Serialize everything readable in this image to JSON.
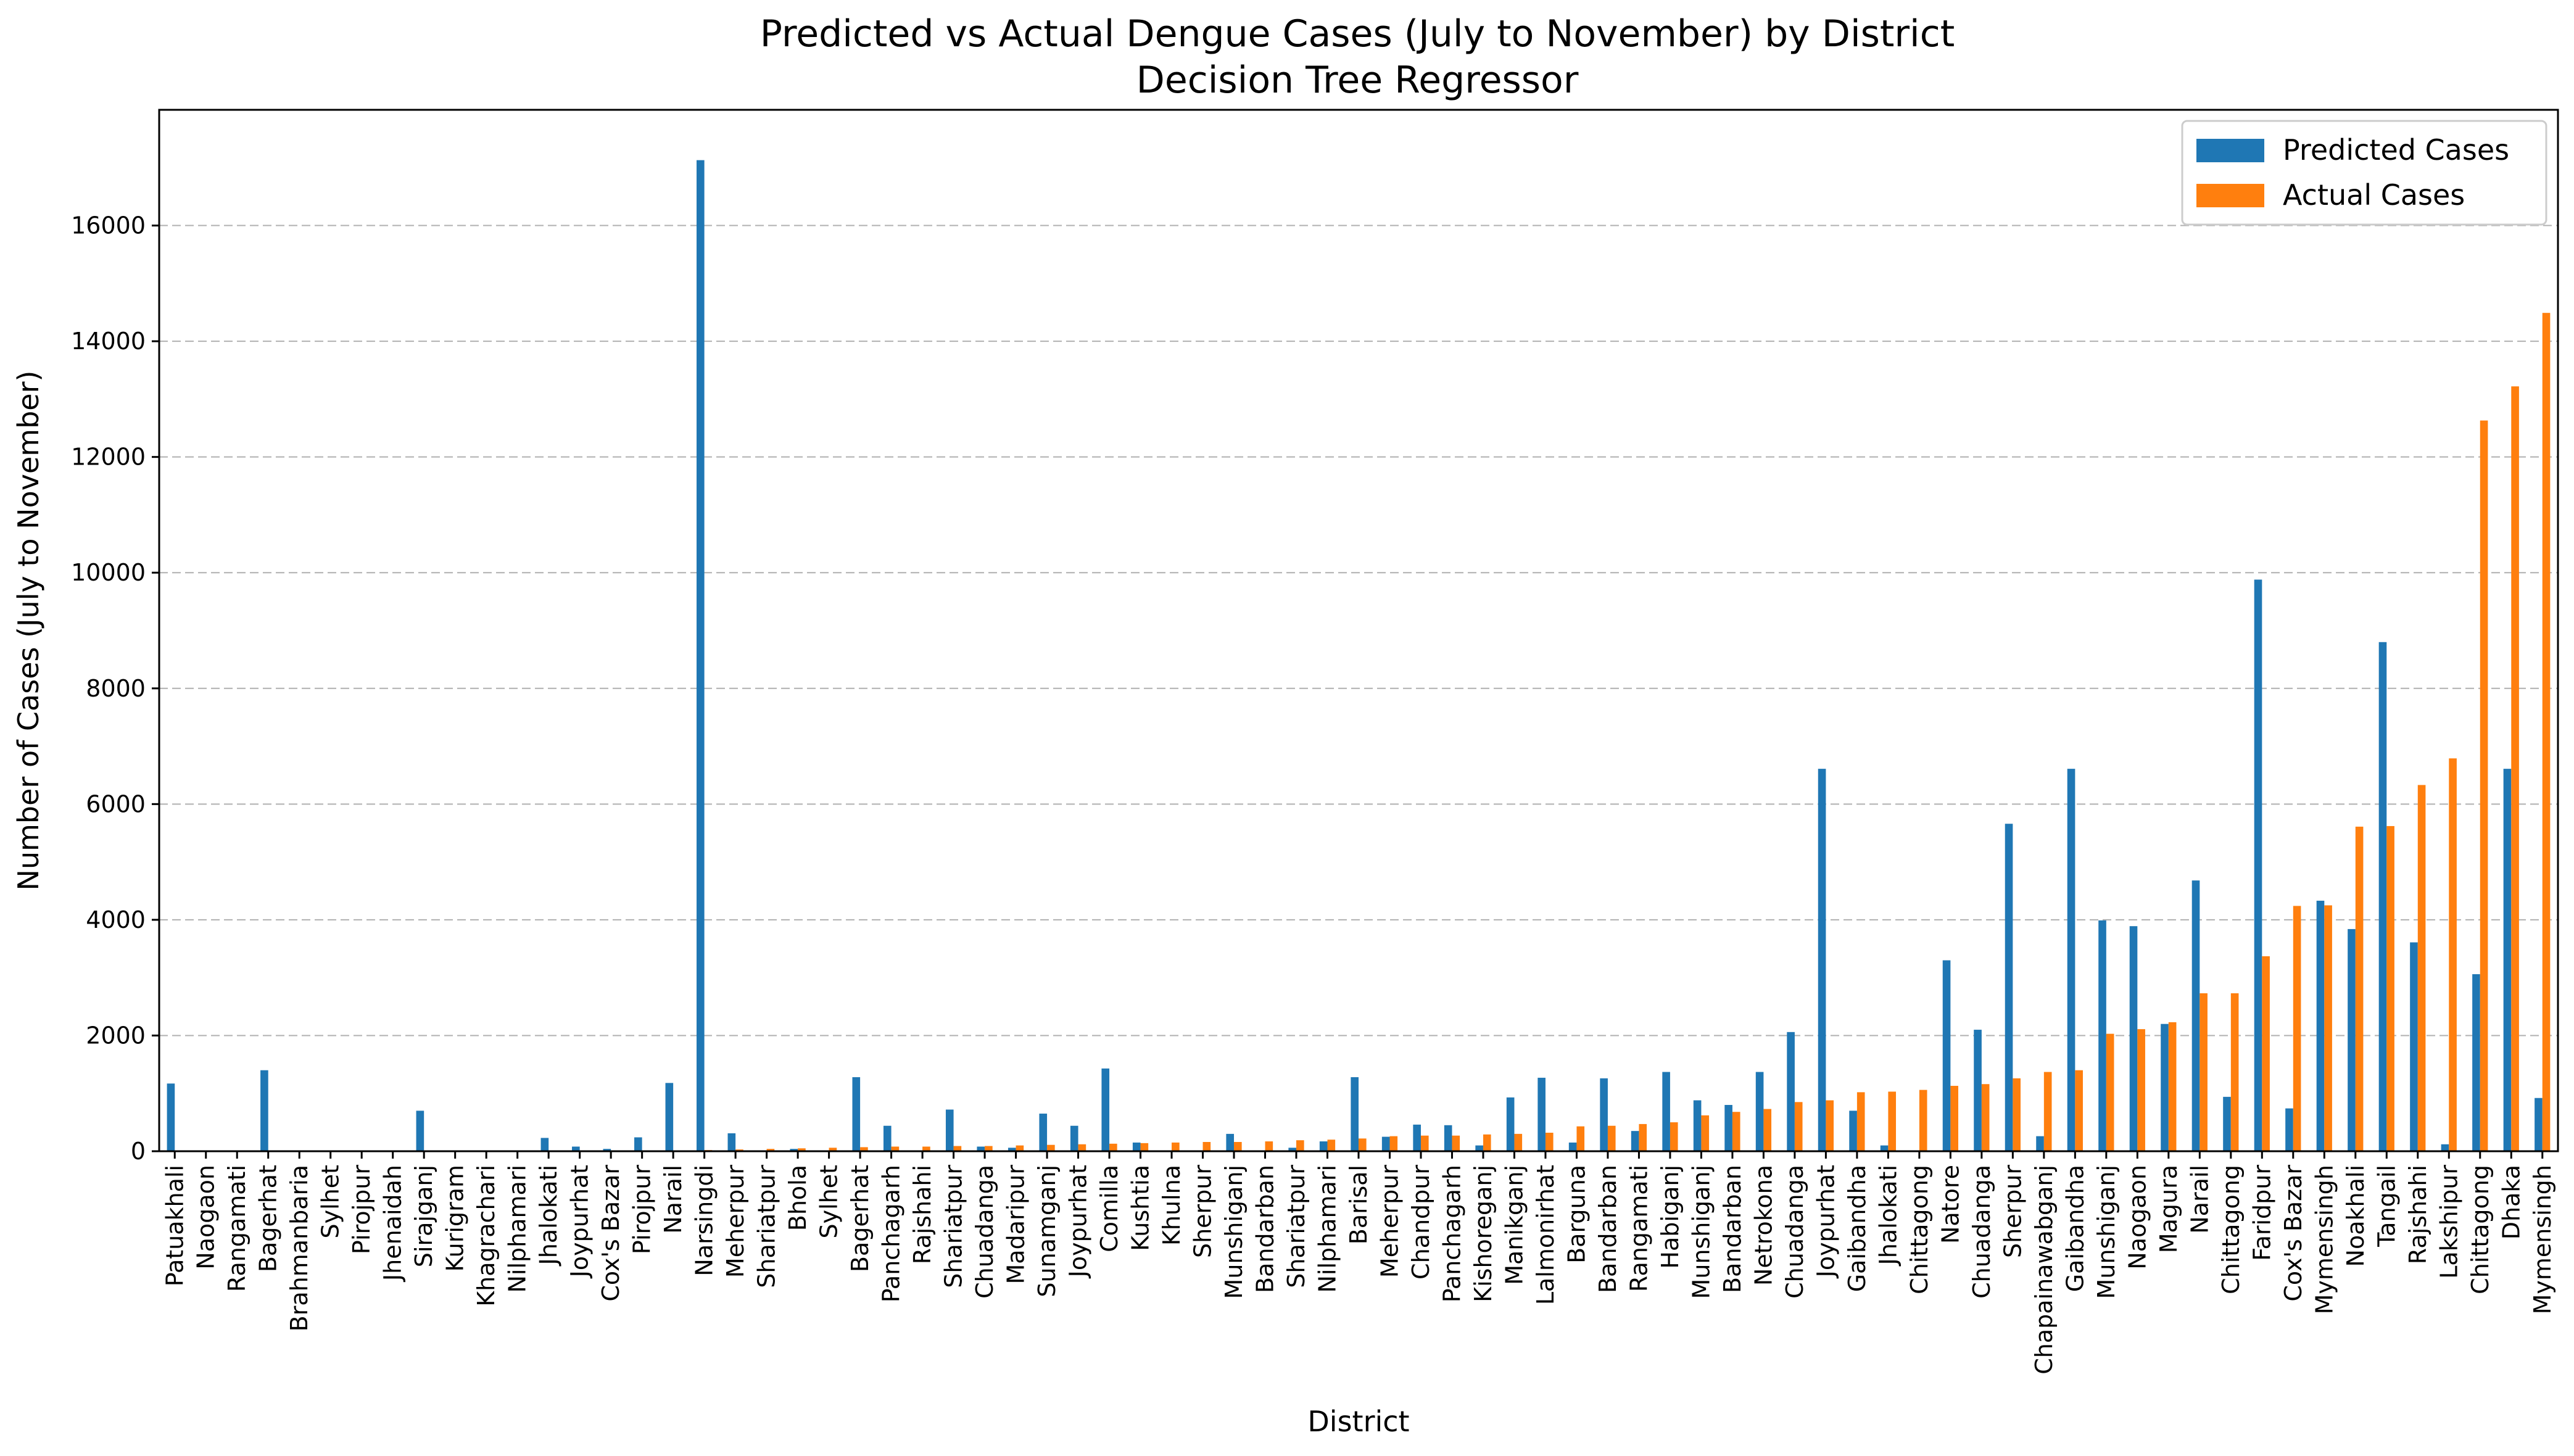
{
  "chart_data": {
    "type": "bar",
    "title": "Predicted vs Actual Dengue Cases (July to November) by District",
    "subtitle": "Decision Tree Regressor",
    "xlabel": "District",
    "ylabel": "Number of Cases (July to November)",
    "ylim": [
      0,
      18000
    ],
    "yticks": [
      0,
      2000,
      4000,
      6000,
      8000,
      10000,
      12000,
      14000,
      16000
    ],
    "grid": "y-dashed",
    "legend_position": "top-right",
    "categories": [
      "Patuakhali",
      "Naogaon",
      "Rangamati",
      "Bagerhat",
      "Brahmanbaria",
      "Sylhet",
      "Pirojpur",
      "Jhenaidah",
      "Sirajganj",
      "Kurigram",
      "Khagrachari",
      "Nilphamari",
      "Jhalokati",
      "Joypurhat",
      "Cox's Bazar",
      "Pirojpur",
      "Narail",
      "Narsingdi",
      "Meherpur",
      "Shariatpur",
      "Bhola",
      "Sylhet",
      "Bagerhat",
      "Panchagarh",
      "Rajshahi",
      "Shariatpur",
      "Chuadanga",
      "Madaripur",
      "Sunamganj",
      "Joypurhat",
      "Comilla",
      "Kushtia",
      "Khulna",
      "Sherpur",
      "Munshiganj",
      "Bandarban",
      "Shariatpur",
      "Nilphamari",
      "Barisal",
      "Meherpur",
      "Chandpur",
      "Panchagarh",
      "Kishoreganj",
      "Manikganj",
      "Lalmonirhat",
      "Barguna",
      "Bandarban",
      "Rangamati",
      "Habiganj",
      "Munshiganj",
      "Bandarban",
      "Netrokona",
      "Chuadanga",
      "Joypurhat",
      "Gaibandha",
      "Jhalokati",
      "Chittagong",
      "Natore",
      "Chuadanga",
      "Sherpur",
      "Chapainawabganj",
      "Gaibandha",
      "Munshiganj",
      "Naogaon",
      "Magura",
      "Narail",
      "Chittagong",
      "Faridpur",
      "Cox's Bazar",
      "Mymensingh",
      "Noakhali",
      "Tangail",
      "Rajshahi",
      "Lakshipur",
      "Chittagong",
      "Dhaka",
      "Mymensingh"
    ],
    "series": [
      {
        "name": "Predicted Cases",
        "color": "#1f77b4",
        "values": [
          1170,
          0,
          0,
          1400,
          0,
          0,
          0,
          0,
          700,
          0,
          0,
          0,
          230,
          80,
          40,
          240,
          1180,
          17130,
          310,
          0,
          40,
          0,
          1280,
          440,
          0,
          720,
          80,
          60,
          650,
          440,
          1430,
          150,
          0,
          0,
          300,
          0,
          60,
          170,
          1280,
          250,
          460,
          450,
          100,
          930,
          1270,
          150,
          1260,
          350,
          1370,
          880,
          800,
          1370,
          2060,
          6610,
          700,
          100,
          0,
          3300,
          2100,
          5660,
          260,
          6610,
          3990,
          3890,
          2200,
          4680,
          940,
          9880,
          740,
          4330,
          3840,
          8800,
          3610,
          120,
          3060,
          6610,
          920
        ]
      },
      {
        "name": "Actual Cases",
        "color": "#ff7f0e",
        "values": [
          0,
          0,
          0,
          0,
          0,
          0,
          0,
          0,
          0,
          0,
          0,
          0,
          0,
          0,
          0,
          0,
          10,
          20,
          30,
          40,
          50,
          60,
          70,
          80,
          80,
          90,
          90,
          100,
          110,
          120,
          130,
          140,
          150,
          160,
          160,
          170,
          190,
          200,
          220,
          260,
          270,
          270,
          290,
          300,
          320,
          430,
          440,
          470,
          500,
          620,
          680,
          730,
          850,
          880,
          1020,
          1030,
          1060,
          1130,
          1160,
          1260,
          1370,
          1400,
          2030,
          2110,
          2230,
          2730,
          2730,
          3370,
          4240,
          4250,
          5610,
          5620,
          6330,
          6790,
          12630,
          13220,
          14490
        ]
      }
    ]
  }
}
